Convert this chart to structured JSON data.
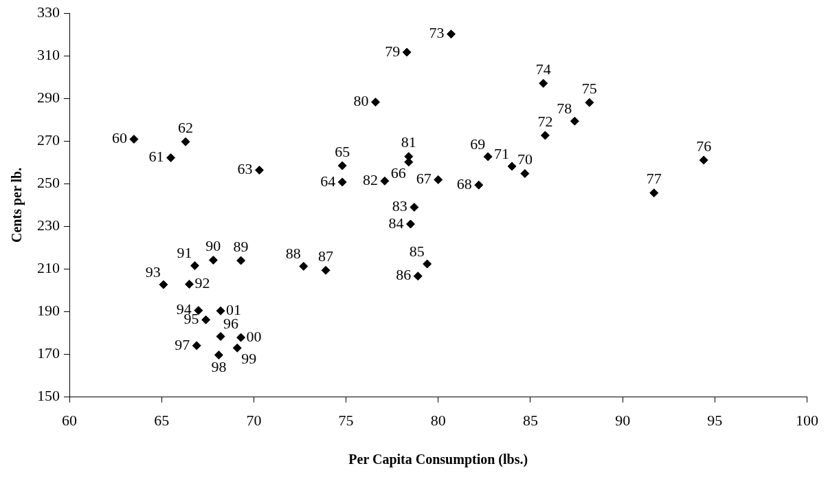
{
  "chart_data": {
    "type": "scatter",
    "xlabel": "Per Capita Consumption (lbs.)",
    "ylabel": "Cents per lb.",
    "x": [
      63.5,
      65.5,
      66.3,
      70.3,
      74.8,
      74.8,
      78.4,
      80.0,
      82.2,
      82.7,
      84.7,
      84.0,
      85.8,
      80.7,
      85.7,
      88.2,
      94.4,
      91.7,
      87.4,
      78.3,
      76.6,
      78.4,
      77.1,
      78.7,
      78.5,
      79.4,
      78.9,
      73.9,
      72.7,
      69.3,
      67.8,
      66.8,
      66.5,
      65.1,
      67.0,
      67.4,
      68.2,
      66.9,
      68.1,
      69.1,
      69.3,
      68.2
    ],
    "values": [
      270.9,
      262.2,
      269.7,
      256.4,
      250.8,
      258.5,
      260.2,
      251.9,
      249.4,
      262.7,
      254.8,
      258.2,
      272.7,
      320.2,
      297.1,
      288.1,
      261.1,
      245.7,
      279.4,
      311.7,
      288.3,
      262.8,
      251.3,
      239.0,
      231.1,
      212.4,
      206.7,
      209.4,
      211.3,
      214.0,
      214.2,
      211.6,
      202.9,
      202.7,
      190.6,
      186.2,
      178.4,
      174.1,
      169.7,
      173.0,
      177.9,
      190.4
    ],
    "annotations": [
      {
        "text": "60",
        "x": 63.5,
        "y": 270.9
      },
      {
        "text": "61",
        "x": 65.5,
        "y": 262.2
      },
      {
        "text": "62",
        "x": 66.3,
        "y": 269.7
      },
      {
        "text": "63",
        "x": 70.3,
        "y": 256.4
      },
      {
        "text": "64",
        "x": 74.8,
        "y": 250.8
      },
      {
        "text": "65",
        "x": 74.8,
        "y": 258.5
      },
      {
        "text": "66",
        "x": 78.4,
        "y": 260.2
      },
      {
        "text": "67",
        "x": 80.0,
        "y": 251.9
      },
      {
        "text": "68",
        "x": 82.2,
        "y": 249.4
      },
      {
        "text": "69",
        "x": 82.7,
        "y": 262.7
      },
      {
        "text": "70",
        "x": 84.7,
        "y": 254.8
      },
      {
        "text": "71",
        "x": 84.0,
        "y": 258.2
      },
      {
        "text": "72",
        "x": 85.8,
        "y": 272.7
      },
      {
        "text": "73",
        "x": 80.7,
        "y": 320.2
      },
      {
        "text": "74",
        "x": 85.7,
        "y": 297.1
      },
      {
        "text": "75",
        "x": 88.2,
        "y": 288.1
      },
      {
        "text": "76",
        "x": 94.4,
        "y": 261.1
      },
      {
        "text": "77",
        "x": 91.7,
        "y": 245.7
      },
      {
        "text": "78",
        "x": 87.4,
        "y": 279.4
      },
      {
        "text": "79",
        "x": 78.3,
        "y": 311.7
      },
      {
        "text": "80",
        "x": 76.6,
        "y": 288.3
      },
      {
        "text": "81",
        "x": 78.4,
        "y": 262.8
      },
      {
        "text": "82",
        "x": 77.1,
        "y": 251.3
      },
      {
        "text": "83",
        "x": 78.7,
        "y": 239.0
      },
      {
        "text": "84",
        "x": 78.5,
        "y": 231.1
      },
      {
        "text": "85",
        "x": 79.4,
        "y": 212.4
      },
      {
        "text": "86",
        "x": 78.9,
        "y": 206.7
      },
      {
        "text": "87",
        "x": 73.9,
        "y": 209.4
      },
      {
        "text": "88",
        "x": 72.7,
        "y": 211.3
      },
      {
        "text": "89",
        "x": 69.3,
        "y": 214.0
      },
      {
        "text": "90",
        "x": 67.8,
        "y": 214.2
      },
      {
        "text": "91",
        "x": 66.8,
        "y": 211.6
      },
      {
        "text": "92",
        "x": 66.5,
        "y": 202.9
      },
      {
        "text": "93",
        "x": 65.1,
        "y": 202.7
      },
      {
        "text": "94",
        "x": 67.0,
        "y": 190.6
      },
      {
        "text": "95",
        "x": 67.4,
        "y": 186.2
      },
      {
        "text": "96",
        "x": 68.2,
        "y": 178.4
      },
      {
        "text": "97",
        "x": 66.9,
        "y": 174.1
      },
      {
        "text": "98",
        "x": 68.1,
        "y": 169.7
      },
      {
        "text": "99",
        "x": 69.1,
        "y": 173.0
      },
      {
        "text": "00",
        "x": 69.3,
        "y": 177.9
      },
      {
        "text": "01",
        "x": 68.2,
        "y": 190.4
      }
    ],
    "color": "#000000",
    "marker": "diamond",
    "grid": false,
    "xlim": [
      60,
      100
    ],
    "xticks": [
      60,
      65,
      70,
      75,
      80,
      85,
      90,
      95,
      100
    ],
    "ylim": [
      150,
      330
    ],
    "yticks": [
      150,
      170,
      190,
      210,
      230,
      250,
      270,
      290,
      310,
      330
    ]
  }
}
